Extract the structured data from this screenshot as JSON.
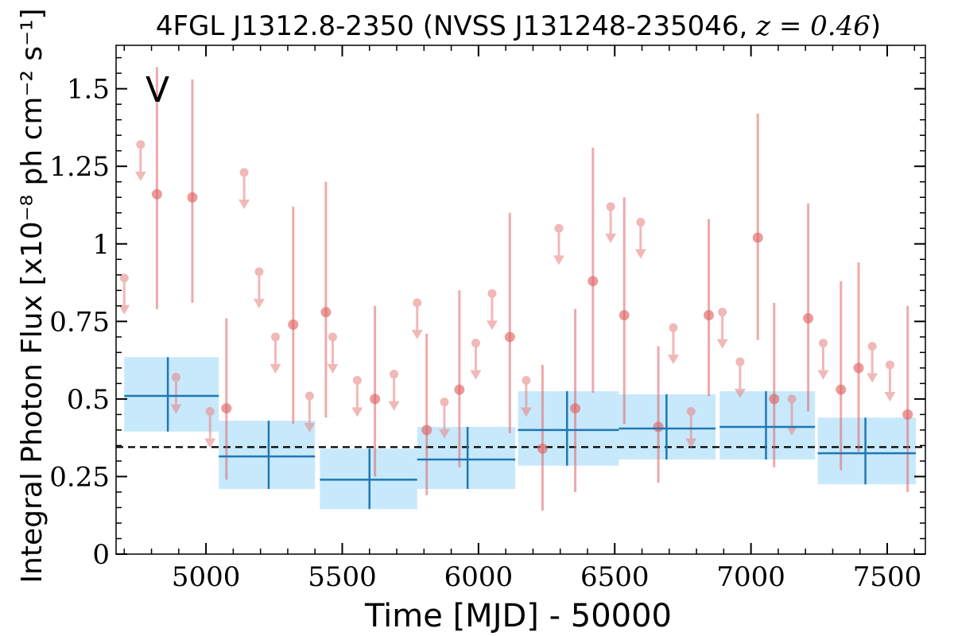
{
  "chart_data": {
    "type": "scatter",
    "title_prefix": "4FGL J1312.8-2350 (NVSS J131248-235046, ",
    "title_math": "z = 0.46",
    "title_suffix": ")",
    "xlabel": "Time [MJD] - 50000",
    "ylabel": "Integral Photon Flux [x10⁻⁸ ph cm⁻² s⁻¹]",
    "annotation": "V",
    "xlim": [
      4670,
      7640
    ],
    "ylim": [
      0,
      1.64
    ],
    "x_ticks": [
      5000,
      5500,
      6000,
      6500,
      7000,
      7500
    ],
    "x_tick_labels": [
      "5000",
      "5500",
      "6000",
      "6500",
      "7000",
      "7500"
    ],
    "y_ticks": [
      0,
      0.25,
      0.5,
      0.75,
      1,
      1.25,
      1.5
    ],
    "y_tick_labels": [
      "0",
      "0.25",
      "0.5",
      "0.75",
      "1",
      "1.25",
      "1.5"
    ],
    "grid": false,
    "reference_line": {
      "y": 0.345,
      "style": "dashed",
      "color": "#000000"
    },
    "colors": {
      "detection": "#e06666",
      "upper_limit": "#e88a8a",
      "binned": "#1f77b4",
      "band": "#c7e9fb",
      "annotation": "#cc2a2a"
    },
    "series": [
      {
        "kind": "upper_limits",
        "x": [
          4700,
          4760,
          4890,
          5015,
          5140,
          5195,
          5255,
          5380,
          5465,
          5555,
          5690,
          5775,
          5875,
          5990,
          6050,
          6175,
          6295,
          6485,
          6595,
          6715,
          6780,
          6895,
          6960,
          7150,
          7265,
          7445,
          7510
        ],
        "y": [
          0.89,
          1.32,
          0.57,
          0.46,
          1.23,
          0.91,
          0.7,
          0.51,
          0.7,
          0.56,
          0.58,
          0.81,
          0.49,
          0.68,
          0.84,
          0.56,
          1.05,
          1.12,
          1.07,
          0.73,
          0.46,
          0.78,
          0.62,
          0.5,
          0.68,
          0.67,
          0.61
        ]
      },
      {
        "kind": "detections",
        "x": [
          4820,
          4950,
          5075,
          5320,
          5440,
          5620,
          5810,
          5930,
          6115,
          6235,
          6355,
          6420,
          6535,
          6660,
          6845,
          7025,
          7085,
          7210,
          7330,
          7395,
          7575
        ],
        "y": [
          1.16,
          1.15,
          0.47,
          0.74,
          0.78,
          0.5,
          0.4,
          0.53,
          0.7,
          0.34,
          0.47,
          0.88,
          0.77,
          0.41,
          0.77,
          1.02,
          0.5,
          0.76,
          0.53,
          0.6,
          0.45
        ],
        "y_err_low": [
          0.37,
          0.34,
          0.23,
          0.32,
          0.34,
          0.25,
          0.21,
          0.25,
          0.31,
          0.2,
          0.27,
          0.36,
          0.35,
          0.18,
          0.26,
          0.33,
          0.22,
          0.3,
          0.26,
          0.27,
          0.25
        ],
        "y_err_high": [
          0.41,
          0.38,
          0.29,
          0.38,
          0.42,
          0.3,
          0.31,
          0.32,
          0.4,
          0.27,
          0.32,
          0.43,
          0.38,
          0.26,
          0.31,
          0.4,
          0.31,
          0.37,
          0.35,
          0.34,
          0.35
        ]
      },
      {
        "kind": "binned",
        "x_low": [
          4700,
          5047,
          5418,
          5775,
          6145,
          6515,
          6885,
          7245
        ],
        "x_high": [
          5047,
          5400,
          5775,
          6135,
          6515,
          6870,
          7235,
          7605
        ],
        "x_center": [
          4860,
          5230,
          5600,
          5960,
          6325,
          6690,
          7055,
          7420
        ],
        "y": [
          0.51,
          0.315,
          0.24,
          0.305,
          0.4,
          0.405,
          0.41,
          0.325
        ],
        "y_low": [
          0.395,
          0.21,
          0.145,
          0.21,
          0.285,
          0.305,
          0.305,
          0.225
        ],
        "y_high": [
          0.635,
          0.43,
          0.34,
          0.41,
          0.525,
          0.515,
          0.525,
          0.44
        ]
      }
    ]
  }
}
